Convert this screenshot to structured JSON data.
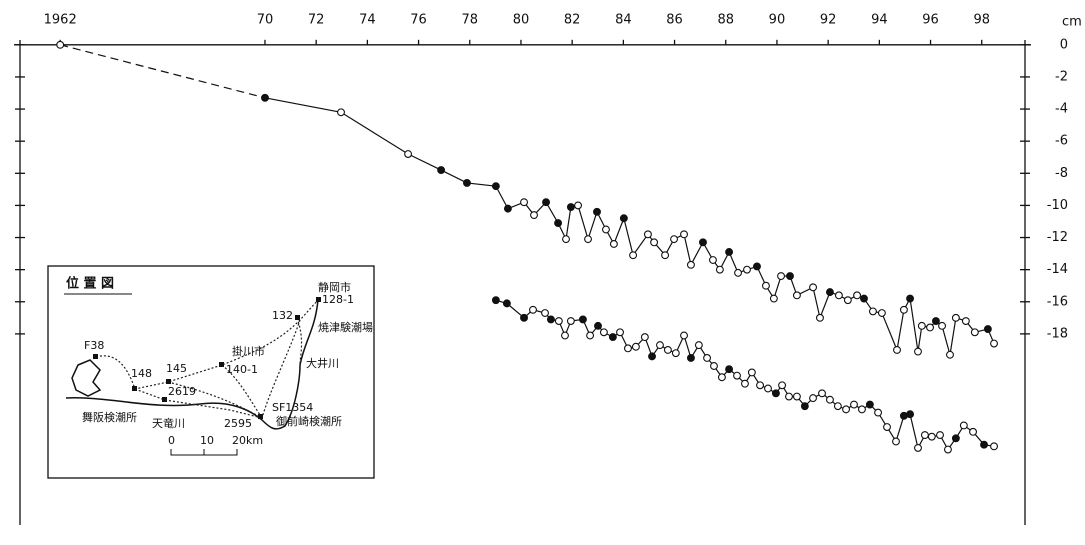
{
  "chart_data": {
    "type": "line",
    "y_unit": "cm",
    "xlim": [
      1960.43,
      1999.69
    ],
    "ylim": [
      -29.9,
      0.3
    ],
    "xticks": [
      1962,
      {
        "value": 1970,
        "label": "70"
      },
      {
        "value": 1972,
        "label": "72"
      },
      {
        "value": 1974,
        "label": "74"
      },
      {
        "value": 1976,
        "label": "76"
      },
      {
        "value": 1978,
        "label": "78"
      },
      {
        "value": 1980,
        "label": "80"
      },
      {
        "value": 1982,
        "label": "82"
      },
      {
        "value": 1984,
        "label": "84"
      },
      {
        "value": 1986,
        "label": "86"
      },
      {
        "value": 1988,
        "label": "88"
      },
      {
        "value": 1990,
        "label": "90"
      },
      {
        "value": 1992,
        "label": "92"
      },
      {
        "value": 1994,
        "label": "94"
      },
      {
        "value": 1996,
        "label": "96"
      },
      {
        "value": 1998,
        "label": "98"
      }
    ],
    "yticks": [
      0,
      -2,
      -4,
      -6,
      -8,
      -10,
      -12,
      -14,
      -16,
      -18
    ],
    "color": "#111111",
    "series": [
      {
        "x": [
          1962,
          1970,
          1972.97,
          1975.59,
          1976.88,
          1977.89,
          1979.02,
          1979.49,
          1980.12,
          1980.51,
          1980.98,
          1981.45,
          1981.76,
          1981.95,
          1982.23,
          1982.62,
          1982.97,
          1983.32,
          1983.63,
          1984.02,
          1984.38,
          1984.96,
          1985.2,
          1985.63,
          1985.98,
          1986.37,
          1986.64,
          1987.11,
          1987.5,
          1987.77,
          1988.13,
          1988.48,
          1988.83,
          1989.22,
          1989.57,
          1989.88,
          1990.16,
          1990.51,
          1990.78,
          1991.41,
          1991.68,
          1992.07,
          1992.42,
          1992.77,
          1993.13,
          1993.4,
          1993.75,
          1994.1,
          1994.69,
          1994.96,
          1995.2,
          1995.51,
          1995.66,
          1995.98,
          1996.21,
          1996.45,
          1996.76,
          1996.99,
          1997.38,
          1997.73,
          1998.24,
          1998.48
        ],
        "values": [
          0,
          -3.3,
          -4.2,
          -6.8,
          -7.8,
          -8.6,
          -8.8,
          -10.2,
          -9.8,
          -10.6,
          -9.8,
          -11.1,
          -12.1,
          -10.1,
          -10.0,
          -12.1,
          -10.4,
          -11.5,
          -12.4,
          -10.8,
          -13.1,
          -11.8,
          -12.3,
          -13.1,
          -12.1,
          -11.8,
          -13.7,
          -12.3,
          -13.4,
          -14.0,
          -12.9,
          -14.2,
          -14.0,
          -13.8,
          -15.0,
          -15.8,
          -14.4,
          -14.4,
          -15.6,
          -15.1,
          -17.0,
          -15.4,
          -15.6,
          -15.9,
          -15.6,
          -15.8,
          -16.6,
          -16.7,
          -19.0,
          -16.5,
          -15.8,
          -19.1,
          -17.5,
          -17.6,
          -17.2,
          -17.5,
          -19.3,
          -17.0,
          -17.2,
          -17.9,
          -17.7,
          -18.6
        ],
        "filled": [
          0,
          1,
          0,
          0,
          1,
          1,
          1,
          1,
          0,
          0,
          1,
          1,
          0,
          1,
          0,
          0,
          1,
          0,
          0,
          1,
          0,
          0,
          0,
          0,
          0,
          0,
          0,
          1,
          0,
          0,
          1,
          0,
          0,
          1,
          0,
          0,
          0,
          1,
          0,
          0,
          0,
          1,
          0,
          0,
          0,
          1,
          0,
          0,
          0,
          0,
          1,
          0,
          0,
          0,
          1,
          0,
          0,
          0,
          0,
          0,
          1,
          0
        ],
        "dashed_segments": [
          0
        ]
      },
      {
        "x": [
          1979.02,
          1979.45,
          1980.12,
          1980.47,
          1980.94,
          1981.17,
          1981.48,
          1981.72,
          1981.95,
          1982.42,
          1982.7,
          1983.01,
          1983.24,
          1983.59,
          1983.87,
          1984.18,
          1984.49,
          1984.84,
          1985.12,
          1985.43,
          1985.74,
          1986.05,
          1986.37,
          1986.64,
          1986.95,
          1987.27,
          1987.54,
          1987.85,
          1988.13,
          1988.44,
          1988.75,
          1989.02,
          1989.34,
          1989.65,
          1989.96,
          1990.2,
          1990.47,
          1990.78,
          1991.09,
          1991.41,
          1991.76,
          1992.07,
          1992.38,
          1992.7,
          1993.01,
          1993.32,
          1993.63,
          1993.95,
          1994.3,
          1994.65,
          1994.96,
          1995.2,
          1995.51,
          1995.78,
          1996.05,
          1996.37,
          1996.68,
          1996.99,
          1997.3,
          1997.66,
          1998.09,
          1998.48
        ],
        "values": [
          -15.9,
          -16.1,
          -17.0,
          -16.5,
          -16.7,
          -17.1,
          -17.2,
          -18.1,
          -17.2,
          -17.1,
          -18.1,
          -17.5,
          -17.9,
          -18.2,
          -17.9,
          -18.9,
          -18.8,
          -18.2,
          -19.4,
          -18.7,
          -19.0,
          -19.2,
          -18.1,
          -19.5,
          -18.7,
          -19.5,
          -20.0,
          -20.7,
          -20.2,
          -20.6,
          -21.1,
          -20.4,
          -21.2,
          -21.4,
          -21.7,
          -21.2,
          -21.9,
          -21.9,
          -22.5,
          -22.0,
          -21.7,
          -22.1,
          -22.5,
          -22.7,
          -22.4,
          -22.7,
          -22.4,
          -22.9,
          -23.8,
          -24.7,
          -23.1,
          -23.0,
          -25.1,
          -24.3,
          -24.4,
          -24.3,
          -25.2,
          -24.5,
          -23.7,
          -24.1,
          -24.9,
          -25.0
        ],
        "filled": [
          1,
          1,
          1,
          0,
          0,
          1,
          0,
          0,
          0,
          1,
          0,
          1,
          0,
          1,
          0,
          0,
          0,
          0,
          1,
          0,
          0,
          0,
          0,
          1,
          0,
          0,
          0,
          0,
          1,
          0,
          0,
          0,
          0,
          0,
          1,
          0,
          0,
          0,
          1,
          0,
          0,
          0,
          0,
          0,
          0,
          0,
          1,
          0,
          0,
          0,
          1,
          1,
          0,
          0,
          0,
          0,
          0,
          1,
          0,
          0,
          1,
          0
        ]
      }
    ],
    "inset": {
      "title": "位 置 図",
      "labels": [
        "静岡市",
        "128-1",
        "132",
        "焼津験潮場",
        "掛川市",
        "140-1",
        "大井川",
        "F38",
        "148",
        "145",
        "2619",
        "SF1354",
        "御前崎検潮所",
        "舞阪検潮所",
        "天竜川",
        "2595"
      ],
      "scale": [
        "0",
        "10",
        "20km"
      ]
    }
  }
}
